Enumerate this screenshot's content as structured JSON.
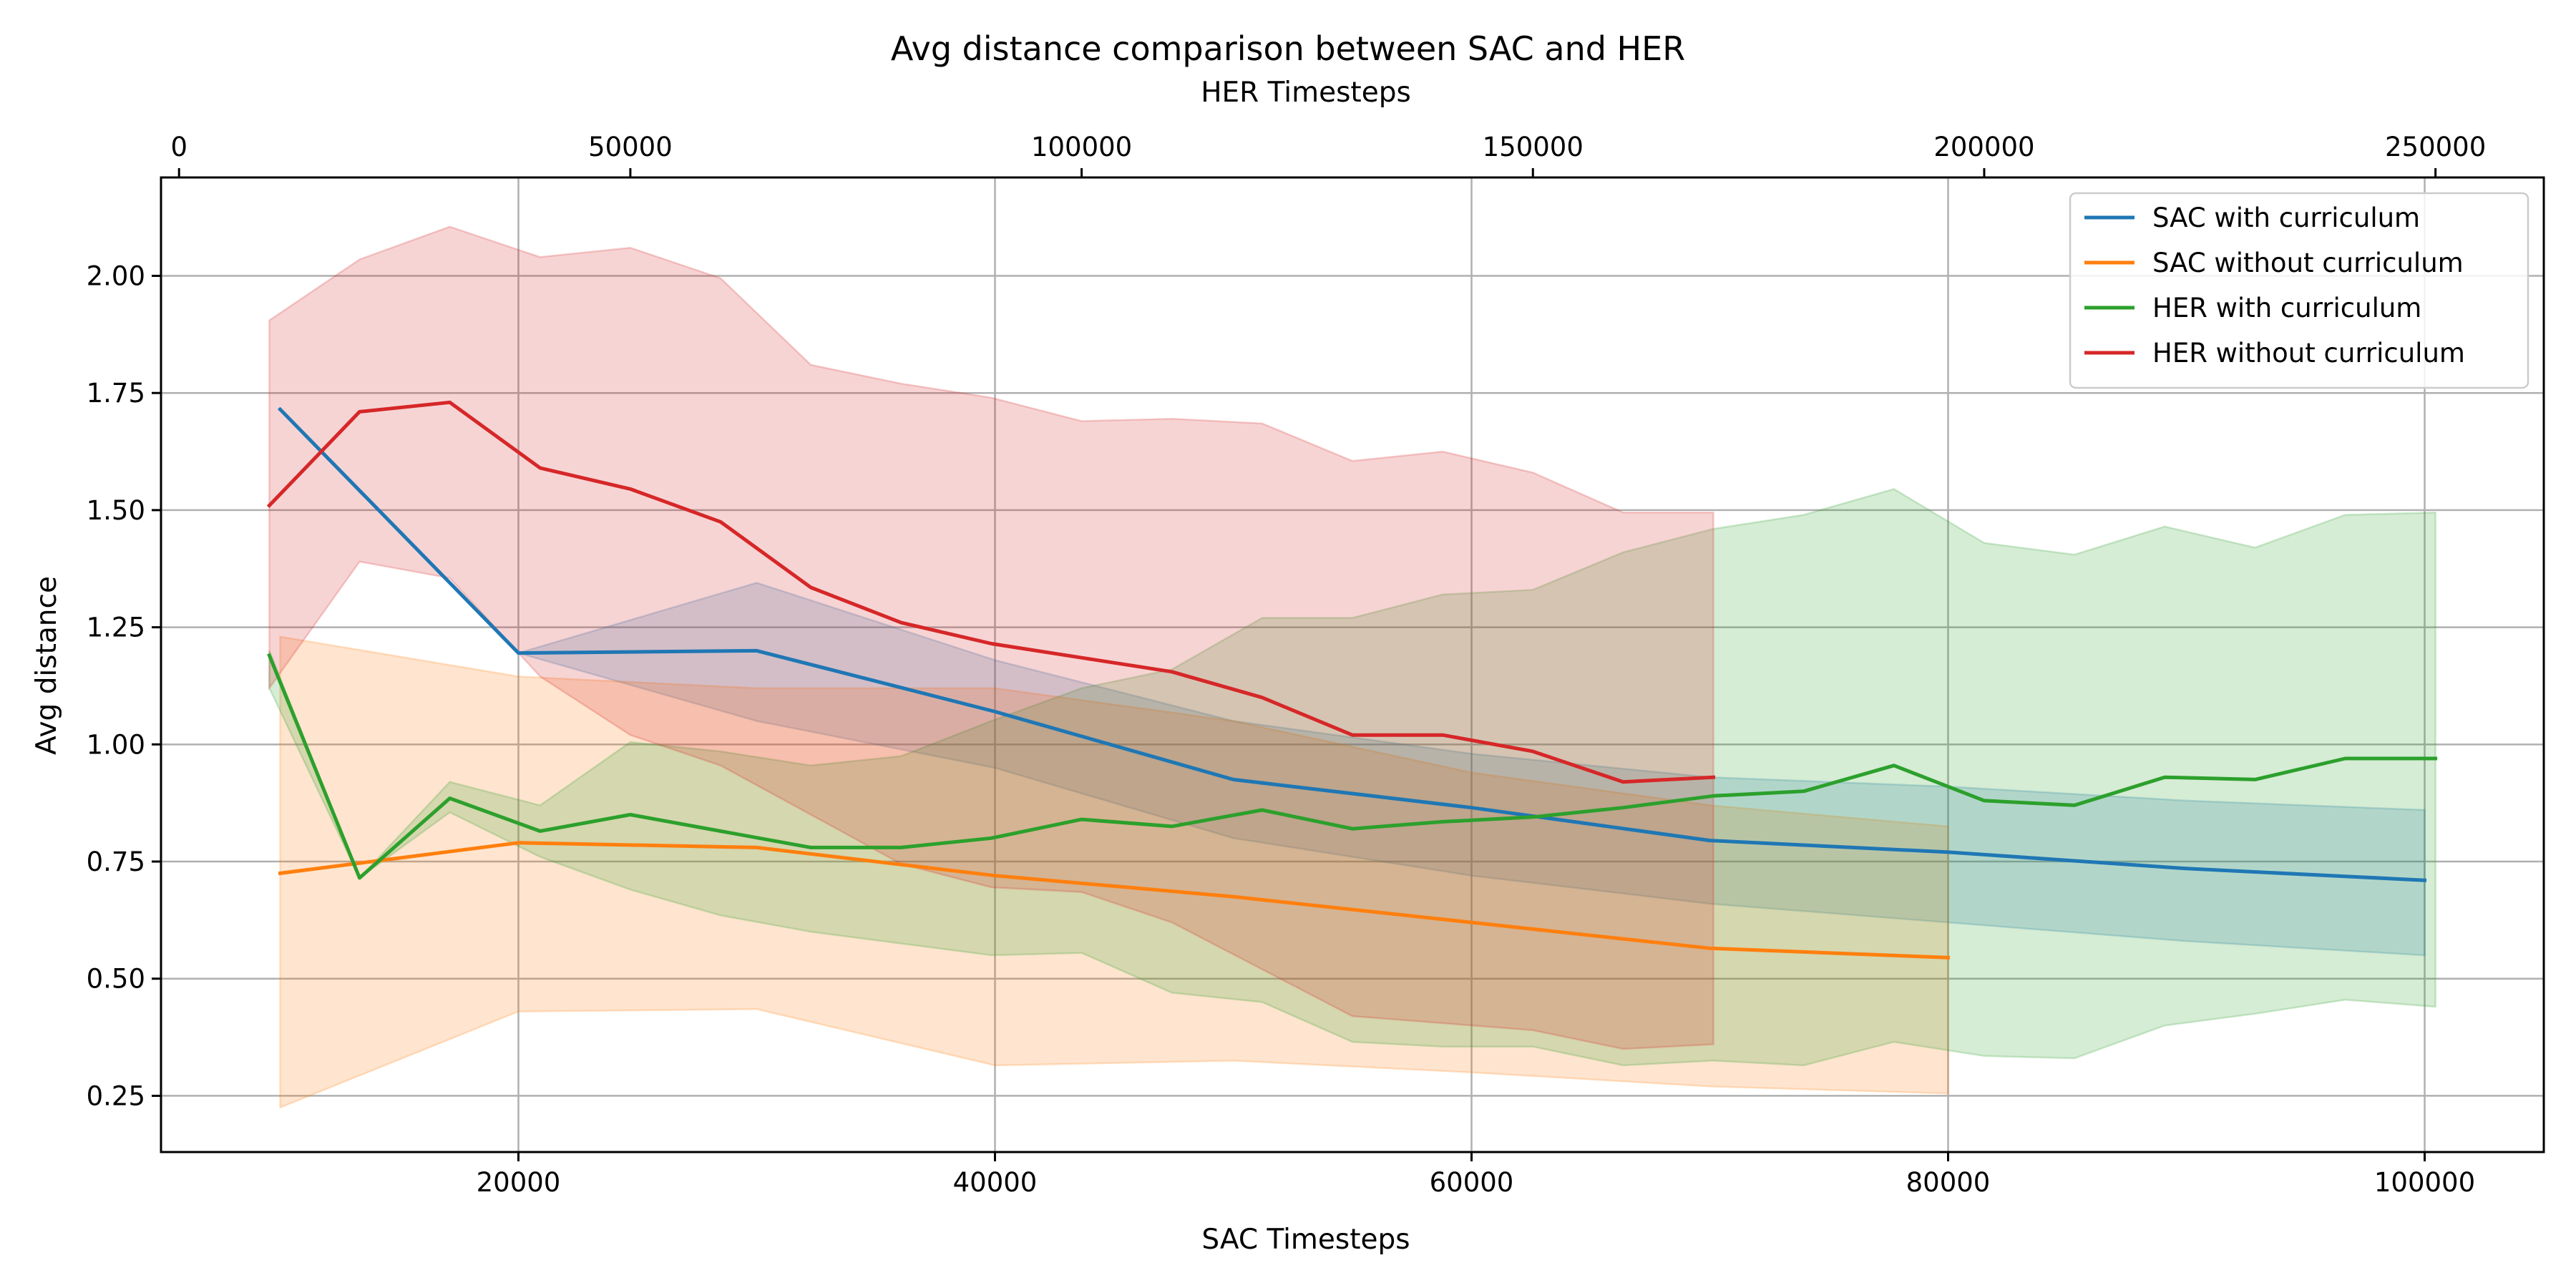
{
  "chart_data": {
    "type": "line",
    "title": "Avg distance comparison between SAC and HER",
    "xlabel": "SAC Timesteps",
    "x2label": "HER Timesteps",
    "ylabel": "Avg distance",
    "xlim": [
      5000,
      105000
    ],
    "x2lim": [
      -2000,
      262000
    ],
    "ylim": [
      0.13,
      2.21
    ],
    "xticks": [
      20000,
      40000,
      60000,
      80000,
      100000
    ],
    "x2ticks": [
      0,
      50000,
      100000,
      150000,
      200000,
      250000
    ],
    "yticks": [
      0.25,
      0.5,
      0.75,
      1.0,
      1.25,
      1.5,
      1.75,
      2.0
    ],
    "grid": true,
    "legend_position": "top-right",
    "series": [
      {
        "name": "SAC with curriculum",
        "axis": "bottom",
        "color": "#1f77b4",
        "x": [
          10000,
          20000,
          30000,
          40000,
          50000,
          60000,
          70000,
          80000,
          90000,
          100000
        ],
        "y": [
          1.715,
          1.195,
          1.2,
          1.07,
          0.925,
          0.865,
          0.795,
          0.77,
          0.735,
          0.71
        ],
        "lower": [
          1.715,
          1.195,
          1.05,
          0.95,
          0.8,
          0.72,
          0.66,
          0.62,
          0.58,
          0.55
        ],
        "upper": [
          1.715,
          1.195,
          1.345,
          1.18,
          1.05,
          0.98,
          0.93,
          0.91,
          0.88,
          0.86
        ]
      },
      {
        "name": "SAC without curriculum",
        "axis": "bottom",
        "color": "#ff7f0e",
        "x": [
          10000,
          20000,
          30000,
          40000,
          50000,
          60000,
          70000,
          80000
        ],
        "y": [
          0.725,
          0.79,
          0.78,
          0.72,
          0.675,
          0.62,
          0.565,
          0.545
        ],
        "lower": [
          0.225,
          0.43,
          0.435,
          0.315,
          0.325,
          0.3,
          0.27,
          0.255
        ],
        "upper": [
          1.23,
          1.145,
          1.12,
          1.12,
          1.05,
          0.94,
          0.87,
          0.825
        ]
      },
      {
        "name": "HER with curriculum",
        "axis": "top",
        "color": "#2ca02c",
        "x": [
          10000,
          20000,
          30000,
          40000,
          50000,
          60000,
          70000,
          80000,
          90000,
          100000,
          110000,
          120000,
          130000,
          140000,
          150000,
          160000,
          170000,
          180000,
          190000,
          200000,
          210000,
          220000,
          230000,
          240000,
          250000
        ],
        "y": [
          1.19,
          0.715,
          0.885,
          0.815,
          0.85,
          0.815,
          0.78,
          0.78,
          0.8,
          0.84,
          0.825,
          0.86,
          0.82,
          0.835,
          0.845,
          0.865,
          0.89,
          0.9,
          0.955,
          0.88,
          0.87,
          0.93,
          0.925,
          0.97,
          0.97
        ],
        "lower": [
          1.12,
          0.715,
          0.855,
          0.76,
          0.69,
          0.635,
          0.6,
          0.575,
          0.55,
          0.555,
          0.47,
          0.45,
          0.365,
          0.355,
          0.355,
          0.315,
          0.325,
          0.315,
          0.365,
          0.335,
          0.33,
          0.4,
          0.425,
          0.455,
          0.44
        ],
        "upper": [
          1.2,
          0.715,
          0.92,
          0.87,
          1.005,
          0.985,
          0.955,
          0.975,
          1.05,
          1.12,
          1.16,
          1.27,
          1.27,
          1.32,
          1.33,
          1.41,
          1.46,
          1.49,
          1.545,
          1.43,
          1.405,
          1.465,
          1.42,
          1.49,
          1.495
        ]
      },
      {
        "name": "HER without curriculum",
        "axis": "top",
        "color": "#d62728",
        "x": [
          10000,
          20000,
          30000,
          40000,
          50000,
          60000,
          70000,
          80000,
          90000,
          100000,
          110000,
          120000,
          130000,
          140000,
          150000,
          160000,
          170000
        ],
        "y": [
          1.51,
          1.71,
          1.73,
          1.59,
          1.545,
          1.475,
          1.335,
          1.26,
          1.215,
          1.185,
          1.155,
          1.1,
          1.02,
          1.02,
          0.985,
          0.92,
          0.93
        ],
        "lower": [
          1.12,
          1.39,
          1.355,
          1.145,
          1.02,
          0.955,
          0.85,
          0.745,
          0.695,
          0.685,
          0.62,
          0.52,
          0.42,
          0.405,
          0.39,
          0.35,
          0.36
        ],
        "upper": [
          1.905,
          2.035,
          2.105,
          2.04,
          2.06,
          1.995,
          1.81,
          1.77,
          1.74,
          1.69,
          1.695,
          1.685,
          1.605,
          1.625,
          1.58,
          1.495,
          1.495
        ]
      }
    ]
  }
}
